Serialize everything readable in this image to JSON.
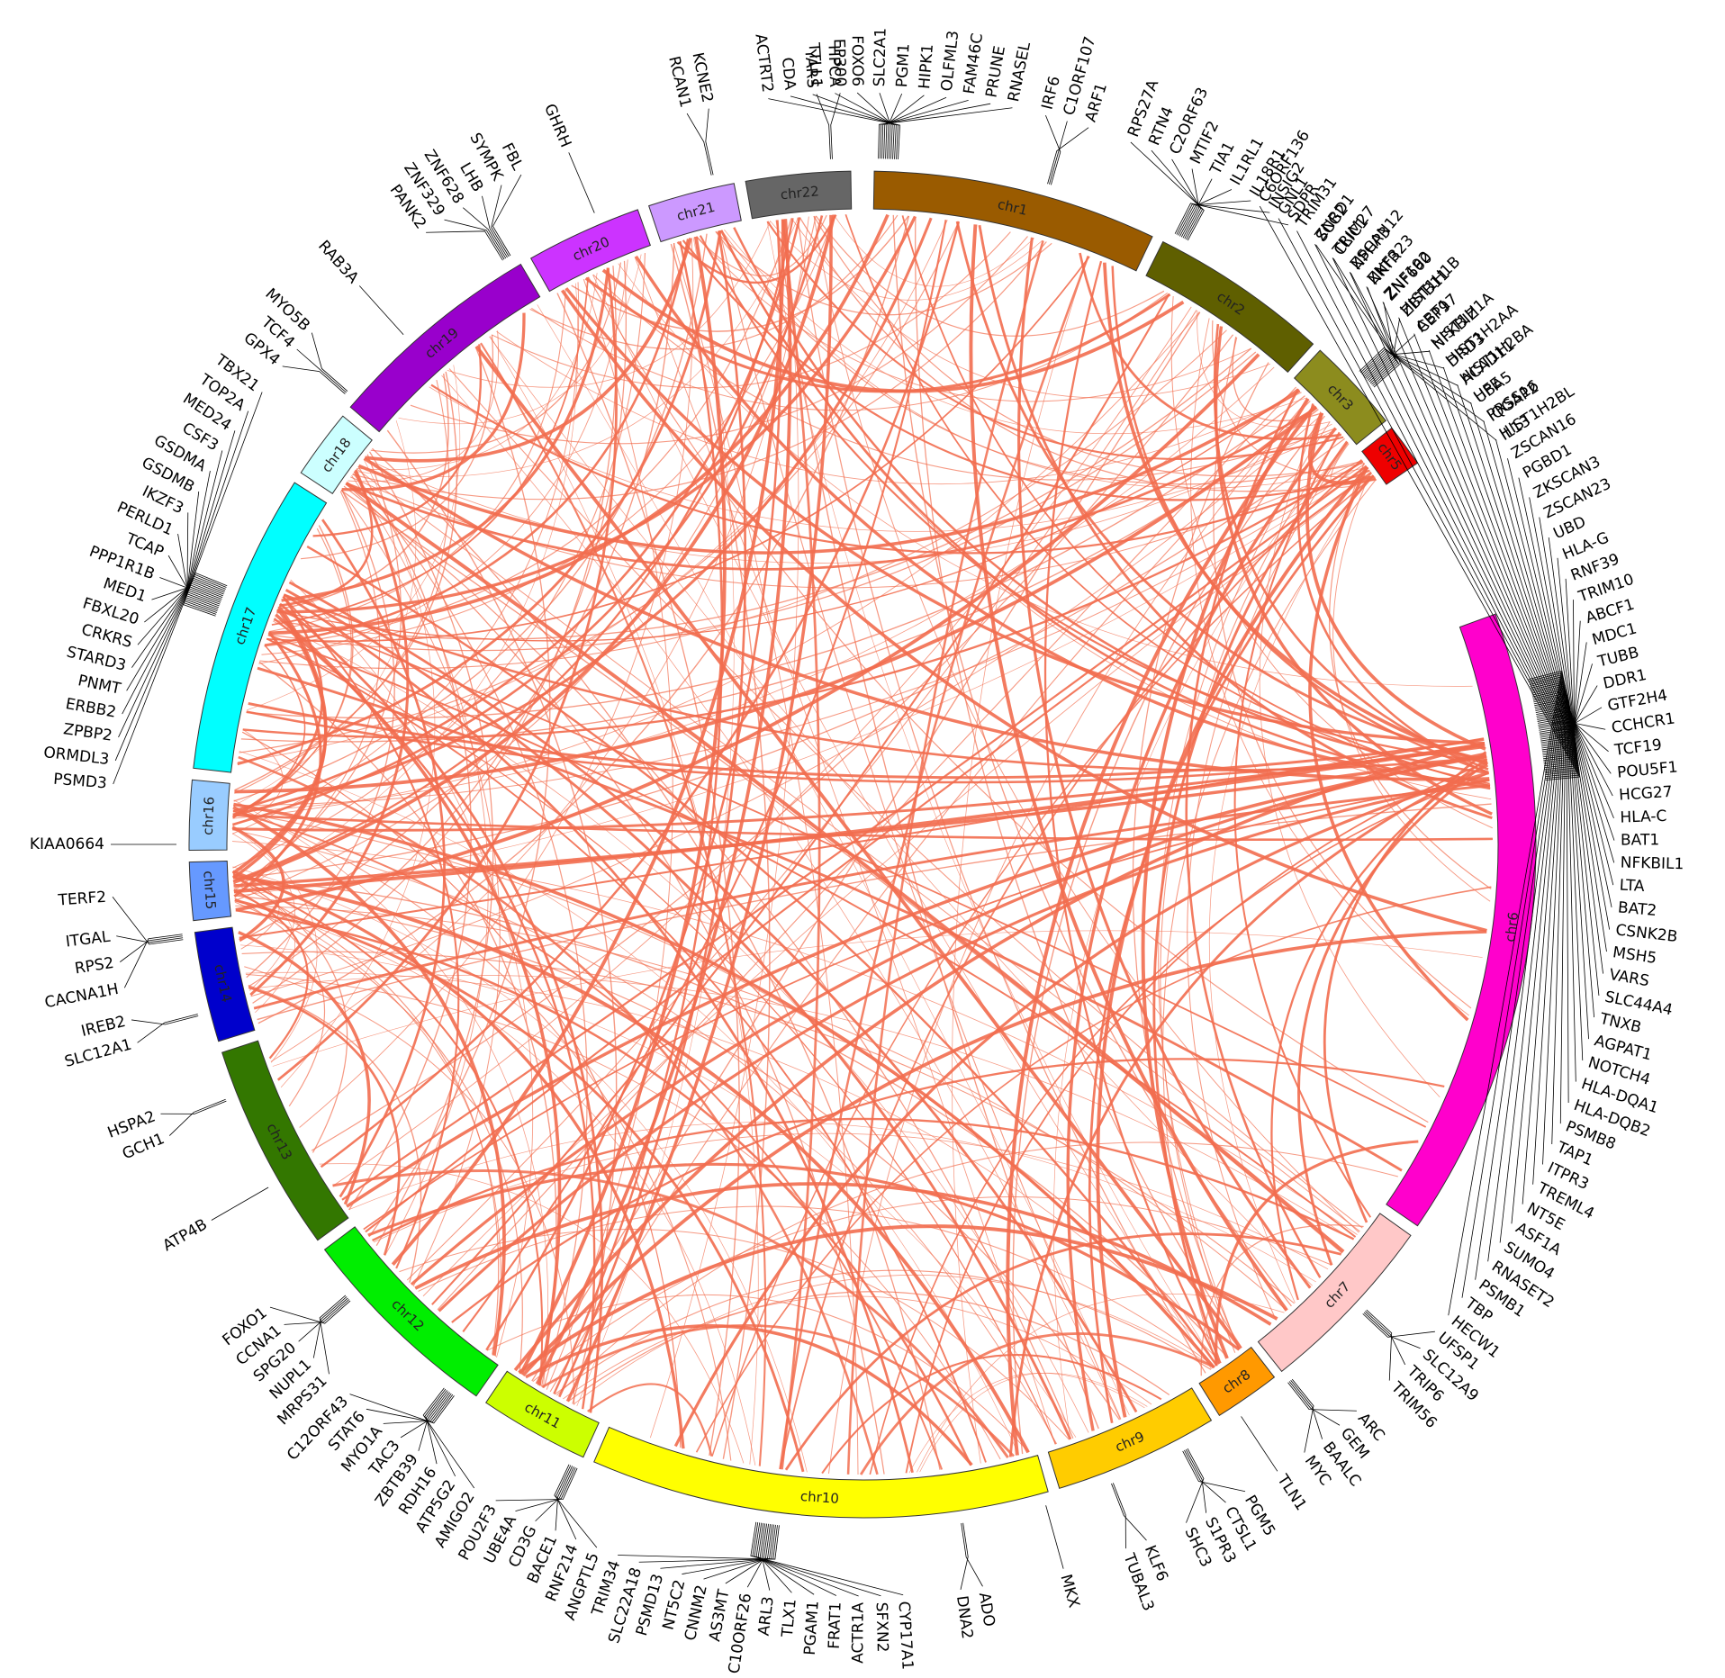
{
  "diagram": {
    "type": "circos",
    "link_color": "#f26d4f",
    "chromosomes": [
      {
        "name": "chr1",
        "color": "#9a5b00",
        "start": 1.0,
        "end": 25.5
      },
      {
        "name": "chr2",
        "color": "#5f5f00",
        "start": 26.5,
        "end": 42.0
      },
      {
        "name": "chr3",
        "color": "#8c8c1e",
        "start": 42.8,
        "end": 51.0
      },
      {
        "name": "chr5",
        "color": "#ee0000",
        "start": 51.8,
        "end": 55.5
      },
      {
        "name": "chr6",
        "color": "#ff00cc",
        "start": 70.0,
        "end": 124.5
      },
      {
        "name": "chr7",
        "color": "#ffc8c8",
        "start": 125.5,
        "end": 141.5
      },
      {
        "name": "chr8",
        "color": "#ff9900",
        "start": 142.3,
        "end": 148.0
      },
      {
        "name": "chr9",
        "color": "#ffcc00",
        "start": 148.8,
        "end": 163.0
      },
      {
        "name": "chr10",
        "color": "#ffff00",
        "start": 164.0,
        "end": 203.5
      },
      {
        "name": "chr11",
        "color": "#ccff00",
        "start": 204.5,
        "end": 214.0
      },
      {
        "name": "chr12",
        "color": "#00ee00",
        "start": 215.0,
        "end": 233.0
      },
      {
        "name": "chr13",
        "color": "#337700",
        "start": 234.0,
        "end": 252.0
      },
      {
        "name": "chr14",
        "color": "#0000cc",
        "start": 253.0,
        "end": 262.5
      },
      {
        "name": "chr15",
        "color": "#6699ff",
        "start": 263.5,
        "end": 268.5
      },
      {
        "name": "chr16",
        "color": "#99ccff",
        "start": 269.5,
        "end": 275.5
      },
      {
        "name": "chr17",
        "color": "#00ffff",
        "start": 276.5,
        "end": 302.5
      },
      {
        "name": "chr18",
        "color": "#ccffff",
        "start": 303.5,
        "end": 309.5
      },
      {
        "name": "chr19",
        "color": "#9900cc",
        "start": 310.5,
        "end": 329.5
      },
      {
        "name": "chr20",
        "color": "#cc33ff",
        "start": 330.5,
        "end": 340.5
      },
      {
        "name": "chr21",
        "color": "#cc99ff",
        "start": 341.5,
        "end": 349.0
      },
      {
        "name": "chr22",
        "color": "#666666",
        "start": 350.0,
        "end": 359.0
      }
    ],
    "gene_groups": [
      {
        "genes": [
          "TTLL1",
          "EP300"
        ],
        "angles": [
          356.5,
          358.3
        ]
      },
      {
        "genes": [
          "RCAN1",
          "KCNE2"
        ],
        "angles": [
          346.5,
          348.2
        ]
      },
      {
        "genes": [
          "GHRH"
        ],
        "angles": [
          337.0
        ]
      },
      {
        "genes": [
          "PANK2",
          "ZNF329",
          "ZNF628",
          "LHB",
          "SYMPK",
          "FBL"
        ],
        "angles": [
          324.5,
          326.2,
          327.9,
          329.6,
          331.3,
          333.0
        ]
      },
      {
        "genes": [
          "RAB3A"
        ],
        "angles": [
          318.0
        ]
      },
      {
        "genes": [
          "GPX4",
          "TCF4",
          "MYO5B"
        ],
        "angles": [
          309.5,
          311.2,
          312.9
        ]
      },
      {
        "genes": [
          "TBX21",
          "TOP2A",
          "MED24",
          "CSF3",
          "GSDMA",
          "GSDMB",
          "IKZF3",
          "PERLD1",
          "TCAP",
          "PPP1R1B",
          "MED1",
          "FBXL20",
          "CRKRS",
          "STARD3",
          "PNMT",
          "ERBB2",
          "ZPBP2",
          "ORMDL3",
          "PSMD3"
        ],
        "angles": [
          307.0,
          305.2,
          303.4,
          301.6,
          299.8,
          298.0,
          296.2,
          294.4,
          292.6,
          290.8,
          289.0,
          287.2,
          285.4,
          283.6,
          281.8,
          280.0,
          278.2,
          276.4,
          274.6
        ]
      },
      {
        "genes": [
          "KIAA0664"
        ],
        "angles": [
          270.0
        ]
      },
      {
        "genes": [
          "TERF2",
          "ITGAL",
          "RPS2",
          "CACNA1H"
        ],
        "angles": [
          266.0,
          263.0,
          261.0,
          259.0
        ]
      },
      {
        "genes": [
          "IREB2",
          "SLC12A1"
        ],
        "angles": [
          256.5,
          254.7
        ]
      },
      {
        "genes": [
          "HSPA2",
          "GCH1"
        ],
        "angles": [
          249.0,
          247.2
        ]
      },
      {
        "genes": [
          "ATP4B"
        ],
        "angles": [
          240.0
        ]
      },
      {
        "genes": [
          "FOXO1",
          "CCNA1",
          "SPG20",
          "NUPL1",
          "MRPS31"
        ],
        "angles": [
          232.0,
          230.3,
          228.6,
          226.9,
          225.2
        ]
      },
      {
        "genes": [
          "C12ORF43",
          "STAT6",
          "MYO1A",
          "TAC3",
          "ZBTB39",
          "RDH16",
          "ATP5G2",
          "AMIGO2"
        ],
        "angles": [
          223.0,
          221.3,
          219.6,
          217.9,
          216.2,
          214.5,
          212.8,
          211.1
        ]
      },
      {
        "genes": [
          "POU2F3",
          "UBE4A",
          "CD3G",
          "BACE1",
          "RNF214",
          "ANGPTL5"
        ],
        "angles": [
          209.2,
          207.5,
          205.8,
          204.1,
          202.4,
          200.7
        ]
      },
      {
        "genes": [
          "TRIM34",
          "SLC22A18",
          "PSMD13",
          "NT5C2",
          "CNNM2",
          "AS3MT",
          "C10ORF26",
          "ARL3",
          "TLX1",
          "PGAM1",
          "FRAT1",
          "ACTR1A",
          "SFXN2",
          "CYP17A1"
        ],
        "angles": [
          199.0,
          197.3,
          195.6,
          193.9,
          192.2,
          190.5,
          188.8,
          187.1,
          185.4,
          183.7,
          182.0,
          180.3,
          178.6,
          176.9
        ]
      },
      {
        "genes": [
          "DNA2",
          "ADO"
        ],
        "angles": [
          172.5,
          170.8
        ]
      },
      {
        "genes": [
          "MKX"
        ],
        "angles": [
          164.5
        ]
      },
      {
        "genes": [
          "TUBAL3",
          "KLF6"
        ],
        "angles": [
          159.5,
          157.8
        ]
      },
      {
        "genes": [
          "SHC3",
          "S1PR3",
          "CTSL1",
          "PGM5"
        ],
        "angles": [
          154.5,
          152.8,
          151.1,
          149.4
        ]
      },
      {
        "genes": [
          "TLN1"
        ],
        "angles": [
          146.5
        ]
      },
      {
        "genes": [
          "MYC",
          "BAALC",
          "GEM",
          "ARC"
        ],
        "angles": [
          144.0,
          142.3,
          140.6,
          138.9
        ]
      },
      {
        "genes": [
          "TRIM56",
          "TRIP6",
          "SLC12A9",
          "UFSP1"
        ],
        "angles": [
          135.5,
          133.8,
          132.1,
          130.4
        ]
      },
      {
        "genes": [
          "HECW1",
          "TBP",
          "PSMB1",
          "RNASET2",
          "SUMO4",
          "ASF1A",
          "NT5E",
          "TREML4",
          "ITPR3",
          "TAP1",
          "PSMB8",
          "HLA-DQB2",
          "HLA-DQA1",
          "NOTCH4",
          "AGPAT1",
          "TNXB",
          "SLC44A4",
          "VARS",
          "MSH5",
          "CSNK2B",
          "BAT2",
          "LTA",
          "NFKBIL1",
          "BAT1",
          "HLA-C",
          "HCG27",
          "POU5F1",
          "TCF19",
          "CCHCR1",
          "GTF2H4",
          "DDR1",
          "TUBB",
          "MDC1",
          "ABCF1",
          "TRIM10",
          "RNF39",
          "HLA-G",
          "UBD",
          "ZSCAN23",
          "ZKSCAN3",
          "PGBD1",
          "ZSCAN16",
          "HIST1H2BL",
          "PRSS16",
          "HFE",
          "HIST1H2BA",
          "HIST1H2AA",
          "HIST1H1A",
          "ABT1",
          "HIST1H1B",
          "ZNF192",
          "ZNF323",
          "ZSCAN12",
          "TRIM27",
          "ZNRD1",
          "TRIM31",
          "GNL1",
          "C6ORF136"
        ],
        "angles": [
          128.8,
          127.1,
          125.4,
          123.7,
          122.0,
          120.3,
          118.6,
          116.9,
          115.2,
          113.5,
          111.8,
          110.1,
          108.4,
          106.7,
          105.0,
          103.3,
          101.6,
          99.9,
          98.2,
          96.5,
          94.8,
          93.1,
          91.4,
          89.7,
          88.0,
          86.3,
          84.6,
          82.9,
          81.2,
          79.5,
          77.8,
          76.1,
          74.4,
          72.7,
          71.0,
          69.3,
          67.6,
          65.9,
          64.2,
          62.5,
          60.8,
          59.1,
          57.4,
          55.7,
          54.0,
          52.3,
          50.6,
          48.9,
          47.2,
          45.5,
          43.8,
          42.1,
          40.4,
          38.7,
          37.0,
          35.3,
          33.6,
          31.9
        ]
      },
      {
        "genes": [
          "IL13",
          "IQGAP2",
          "UBA5",
          "ACAD11",
          "DRD3",
          "NFKBIZ",
          "CEP97",
          "ZBTB11",
          "ZNF660",
          "NKTR",
          "NPHP3",
          "CLIC1",
          "SCG2"
        ],
        "angles": [
          57.5,
          55.8,
          54.1,
          52.4,
          50.7,
          49.0,
          47.3,
          45.6,
          43.9,
          42.2,
          40.5,
          38.8,
          37.1
        ]
      },
      {
        "genes": [
          "SDPR",
          "INSIG2",
          "IL18R1",
          "IL1RL1",
          "TIA1",
          "MTIF2",
          "C2ORF63",
          "RTN4",
          "RPS27A"
        ],
        "angles": [
          34.5,
          32.8,
          31.1,
          29.4,
          27.7,
          26.0,
          24.3,
          22.6,
          20.9
        ]
      },
      {
        "genes": [
          "ARF1",
          "C1ORF107",
          "IRF6"
        ],
        "angles": [
          17.5,
          15.8,
          14.1
        ]
      },
      {
        "genes": [
          "RNASEL",
          "PRUNE",
          "FAM46C",
          "OLFML3",
          "HIPK1",
          "PGM1",
          "SLC2A1",
          "FOXO6",
          "HPCA",
          "YARS",
          "CDA",
          "ACTRT2"
        ],
        "angles": [
          11.5,
          9.8,
          8.1,
          6.4,
          4.7,
          3.0,
          1.3,
          -0.4,
          -2.1,
          -3.8,
          -5.5,
          -7.2
        ]
      }
    ],
    "link_counts": {
      "chr6-hub": 34,
      "chr17-hub": 22,
      "chr10-hub": 14,
      "cross": 260
    }
  }
}
